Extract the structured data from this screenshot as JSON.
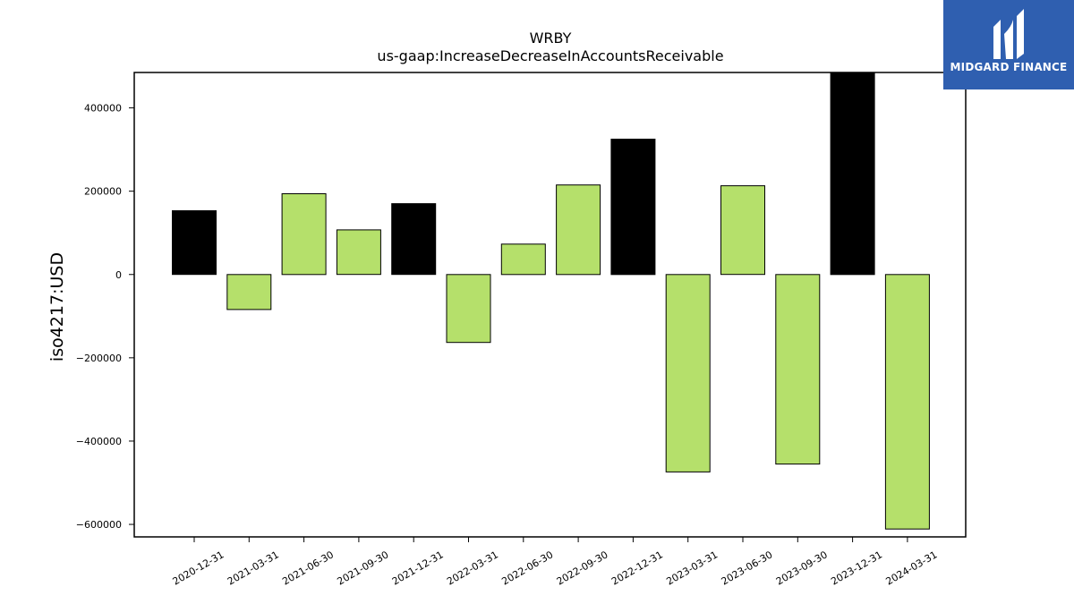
{
  "chart_data": {
    "type": "bar",
    "title": "WRBY",
    "subtitle": "us-gaap:IncreaseDecreaseInAccountsReceivable",
    "xlabel": "",
    "ylabel": "iso4217:USD",
    "ylim": [
      -630000,
      485000
    ],
    "yticks": [
      400000,
      200000,
      0,
      -200000,
      -400000,
      -600000
    ],
    "grid": false,
    "categories": [
      "2020-12-31",
      "2021-03-31",
      "2021-06-30",
      "2021-09-30",
      "2021-12-31",
      "2022-03-31",
      "2022-06-30",
      "2022-09-30",
      "2022-12-31",
      "2023-03-31",
      "2023-06-30",
      "2023-09-30",
      "2023-12-31",
      "2024-03-31"
    ],
    "values": [
      153000,
      -84000,
      194000,
      107000,
      170000,
      -163000,
      73000,
      215000,
      325000,
      -474000,
      213000,
      -455000,
      485000,
      -611000
    ],
    "bar_colors": [
      "#000000",
      "#b5e06b",
      "#b5e06b",
      "#b5e06b",
      "#000000",
      "#b5e06b",
      "#b5e06b",
      "#b5e06b",
      "#000000",
      "#b5e06b",
      "#b5e06b",
      "#b5e06b",
      "#000000",
      "#b5e06b"
    ]
  },
  "logo": {
    "text": "MIDGARD FINANCE",
    "icon": "midgard-logo-icon",
    "background": "#2f5fb0"
  }
}
